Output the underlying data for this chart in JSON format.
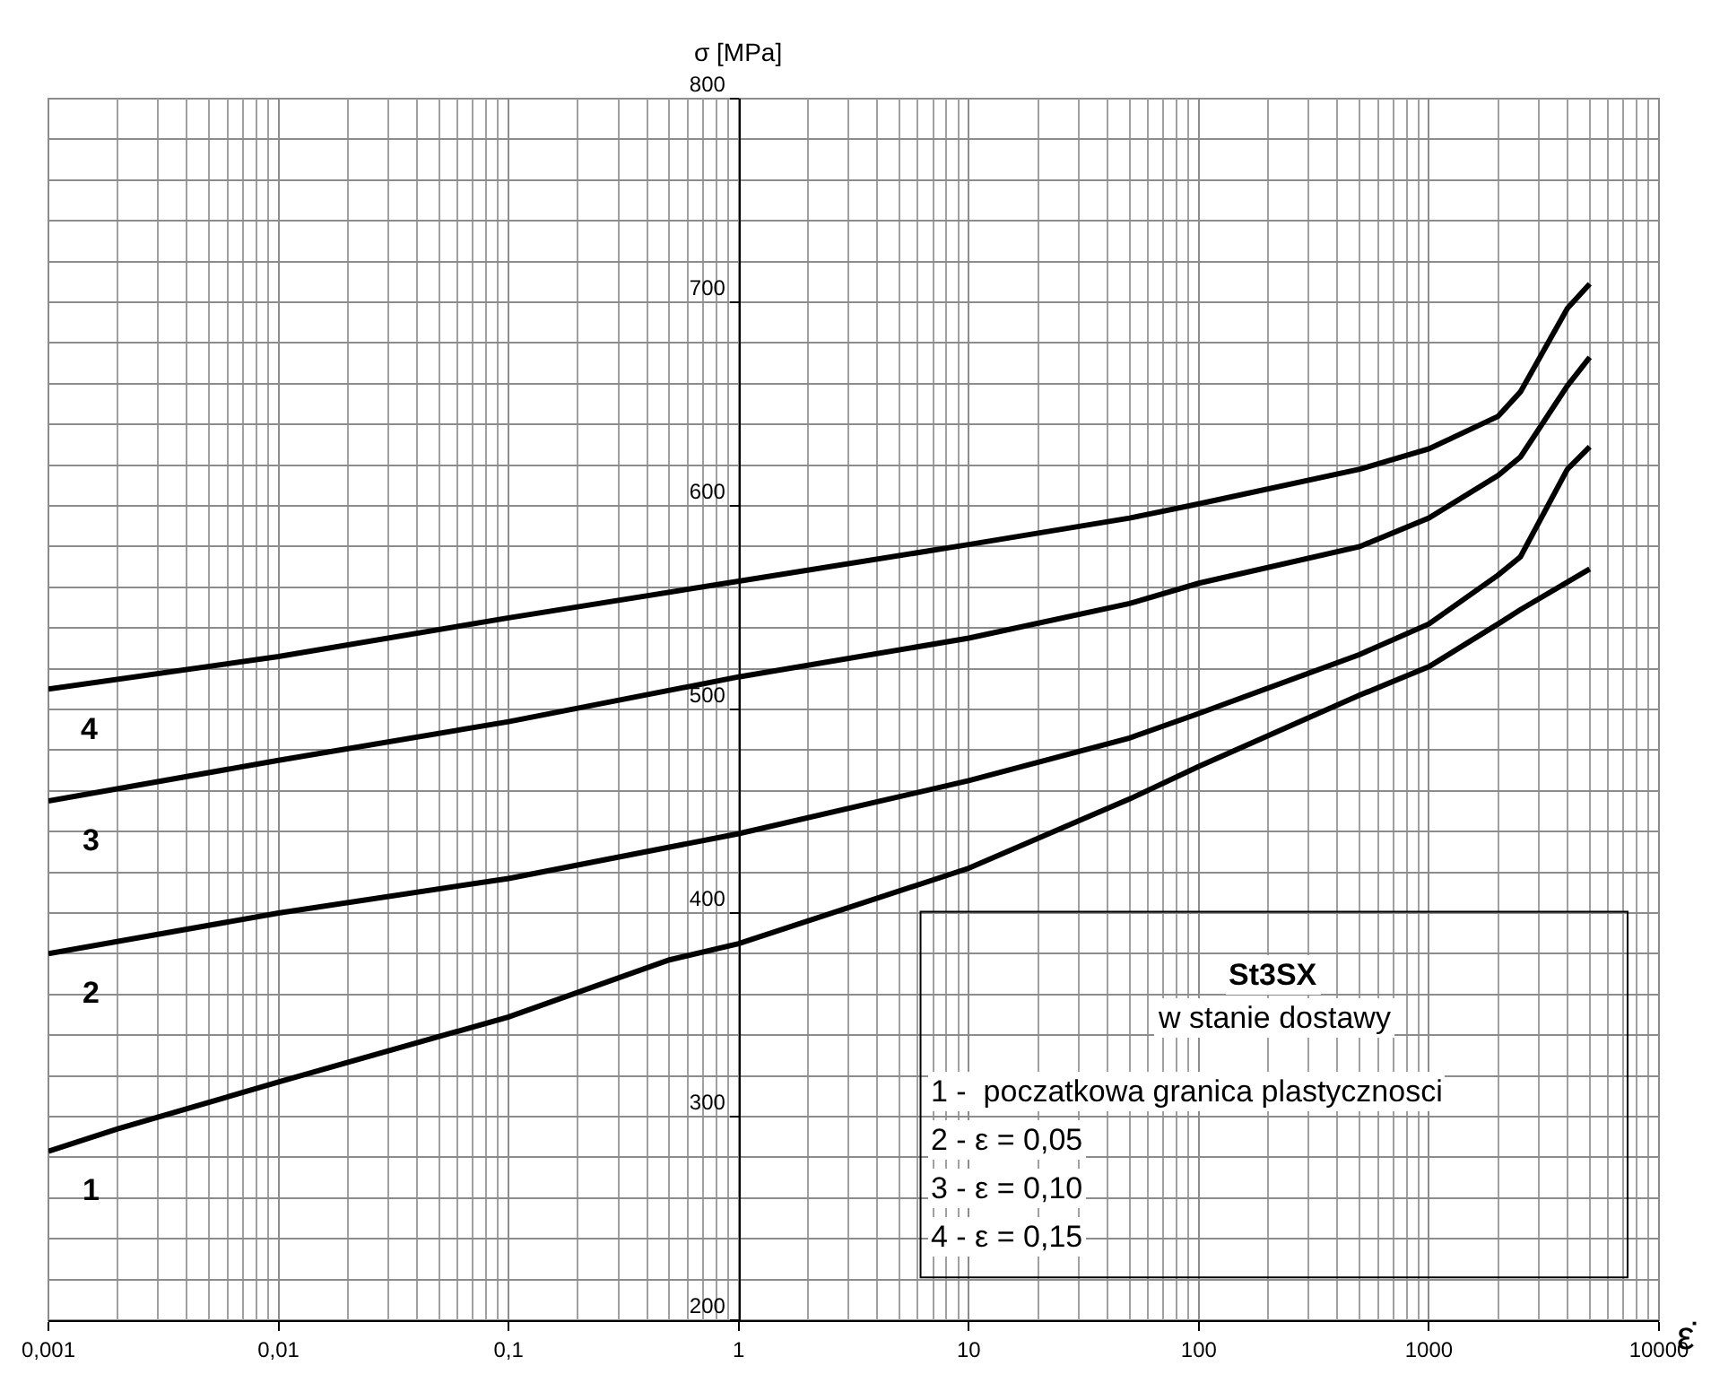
{
  "chart_data": {
    "type": "line",
    "xlabel": "ε̇",
    "ylabel": "σ [MPa]",
    "log": "x",
    "grid": true,
    "legend": false,
    "marker": "none",
    "line_style": "solid",
    "xlim": [
      0.001,
      10000
    ],
    "xticks": [
      {
        "value": 0.001,
        "label": "0,001"
      },
      {
        "value": 0.01,
        "label": "0,01"
      },
      {
        "value": 0.1,
        "label": "0,1"
      },
      1,
      10,
      100,
      1000,
      10000
    ],
    "ylim": [
      200,
      800
    ],
    "yticks": [
      200,
      300,
      400,
      500,
      600,
      700,
      800
    ],
    "series": [
      {
        "name": "1",
        "color": "#000000",
        "x": [
          0.001,
          0.002,
          0.01,
          0.1,
          0.5,
          1,
          10,
          50,
          100,
          500,
          1000,
          2000,
          2500,
          5000
        ],
        "values": [
          283,
          294,
          317,
          349,
          377,
          385,
          422,
          456,
          472,
          507,
          521,
          542,
          549,
          569
        ]
      },
      {
        "name": "2",
        "color": "#000000",
        "x": [
          0.001,
          0.01,
          0.1,
          1,
          10,
          50,
          100,
          500,
          1000,
          2000,
          2500,
          4000,
          5000
        ],
        "values": [
          380,
          400,
          417,
          439,
          465,
          486,
          498,
          527,
          542,
          566,
          575,
          618,
          629
        ]
      },
      {
        "name": "3",
        "color": "#000000",
        "x": [
          0.001,
          0.01,
          0.1,
          1,
          10,
          50,
          100,
          500,
          1000,
          2000,
          2500,
          4000,
          5000
        ],
        "values": [
          455,
          475,
          494,
          516,
          535,
          552,
          562,
          580,
          594,
          615,
          624,
          659,
          673
        ]
      },
      {
        "name": "4",
        "color": "#000000",
        "x": [
          0.001,
          0.01,
          0.1,
          1,
          10,
          50,
          100,
          500,
          1000,
          2000,
          2500,
          4000,
          5000
        ],
        "values": [
          510,
          526,
          545,
          563,
          581,
          594,
          601,
          618,
          628,
          644,
          656,
          697,
          709
        ]
      }
    ],
    "annotations": [
      "St3SX",
      "w stanie dostawy",
      "1 -  poczatkowa granica plastycznosci",
      "2 - ε = 0,05",
      "3 - ε = 0,10",
      "4 - ε = 0,15"
    ]
  }
}
